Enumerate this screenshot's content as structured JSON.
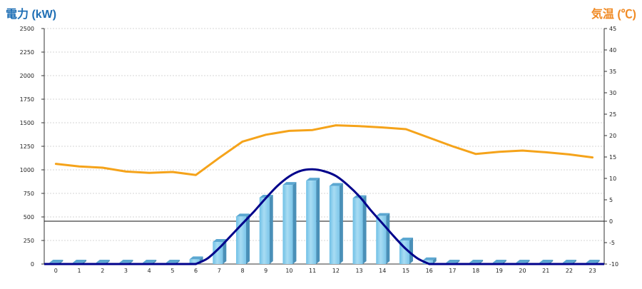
{
  "chart_data": {
    "type": "bar",
    "title_left": "電力 (kW)",
    "title_right": "気温 (℃)",
    "categories": [
      "0",
      "1",
      "2",
      "3",
      "4",
      "5",
      "6",
      "7",
      "8",
      "9",
      "10",
      "11",
      "12",
      "13",
      "14",
      "15",
      "16",
      "17",
      "18",
      "19",
      "20",
      "21",
      "22",
      "23"
    ],
    "y_left": {
      "min": 0,
      "max": 2500,
      "ticks": [
        0,
        250,
        500,
        750,
        1000,
        1250,
        1500,
        1750,
        2000,
        2250,
        2500
      ]
    },
    "y_right": {
      "min": -10,
      "max": 45,
      "ticks": [
        -10,
        -5,
        0,
        5,
        10,
        15,
        20,
        25,
        30,
        35,
        40,
        45
      ]
    },
    "grid": true,
    "series": [
      {
        "kind": "bar",
        "axis": "left",
        "color": "#87ceeb",
        "side_color": "#4a90b8",
        "top_color": "#5ba7d1",
        "values": [
          15,
          15,
          15,
          15,
          15,
          15,
          50,
          235,
          505,
          705,
          840,
          885,
          830,
          700,
          510,
          250,
          40,
          15,
          15,
          15,
          15,
          15,
          15,
          15
        ]
      },
      {
        "kind": "line",
        "axis": "right",
        "color": "#f5a31a",
        "values": [
          13.4,
          12.8,
          12.5,
          11.6,
          11.3,
          11.5,
          10.8,
          14.8,
          18.6,
          20.2,
          21.1,
          21.3,
          22.4,
          22.2,
          21.9,
          21.5,
          19.5,
          17.5,
          15.7,
          16.2,
          16.5,
          16.1,
          15.6,
          14.9
        ]
      },
      {
        "kind": "curve",
        "axis": "left",
        "color": "#00008b",
        "points": [
          [
            6,
            0
          ],
          [
            6.5,
            60
          ],
          [
            7,
            170
          ],
          [
            7.5,
            300
          ],
          [
            8,
            430
          ],
          [
            8.5,
            560
          ],
          [
            9,
            700
          ],
          [
            9.5,
            830
          ],
          [
            10,
            930
          ],
          [
            10.5,
            990
          ],
          [
            11,
            1005
          ],
          [
            11.5,
            985
          ],
          [
            12,
            935
          ],
          [
            12.5,
            840
          ],
          [
            13,
            720
          ],
          [
            13.5,
            570
          ],
          [
            14,
            430
          ],
          [
            14.5,
            290
          ],
          [
            15,
            160
          ],
          [
            15.5,
            60
          ],
          [
            16,
            0
          ]
        ]
      }
    ]
  }
}
